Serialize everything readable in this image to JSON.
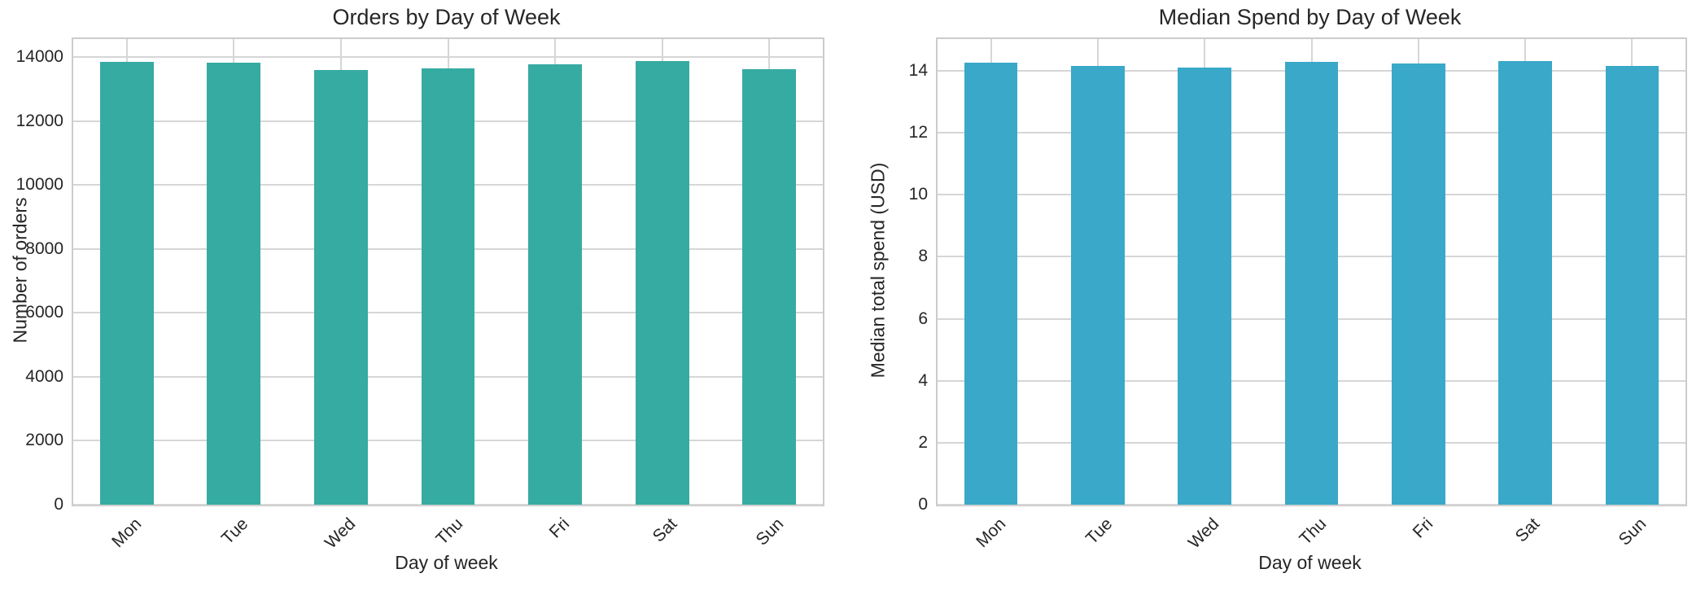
{
  "style": {
    "background": "#ffffff",
    "grid_color": "#d6d6d6",
    "spine_color": "#cccccc",
    "text_color": "#262626"
  },
  "chart_data": [
    {
      "type": "bar",
      "title": "Orders by Day of Week",
      "xlabel": "Day of week",
      "ylabel": "Number of orders",
      "categories": [
        "Mon",
        "Tue",
        "Wed",
        "Thu",
        "Fri",
        "Sat",
        "Sun"
      ],
      "values": [
        13850,
        13840,
        13615,
        13645,
        13770,
        13890,
        13630
      ],
      "bar_color": "#36aba2",
      "ylim": [
        0,
        14570
      ],
      "yticks": [
        0,
        2000,
        4000,
        6000,
        8000,
        10000,
        12000,
        14000
      ],
      "grid": true,
      "legend": "none",
      "x_tick_rotation_deg": 45
    },
    {
      "type": "bar",
      "title": "Median Spend by Day of Week",
      "xlabel": "Day of week",
      "ylabel": "Median total spend (USD)",
      "categories": [
        "Mon",
        "Tue",
        "Wed",
        "Thu",
        "Fri",
        "Sat",
        "Sun"
      ],
      "values": [
        14.25,
        14.16,
        14.1,
        14.28,
        14.22,
        14.3,
        14.15
      ],
      "bar_color": "#3aa8c9",
      "ylim": [
        0,
        15.02
      ],
      "yticks": [
        0,
        2,
        4,
        6,
        8,
        10,
        12,
        14
      ],
      "grid": true,
      "legend": "none",
      "x_tick_rotation_deg": 45
    }
  ]
}
